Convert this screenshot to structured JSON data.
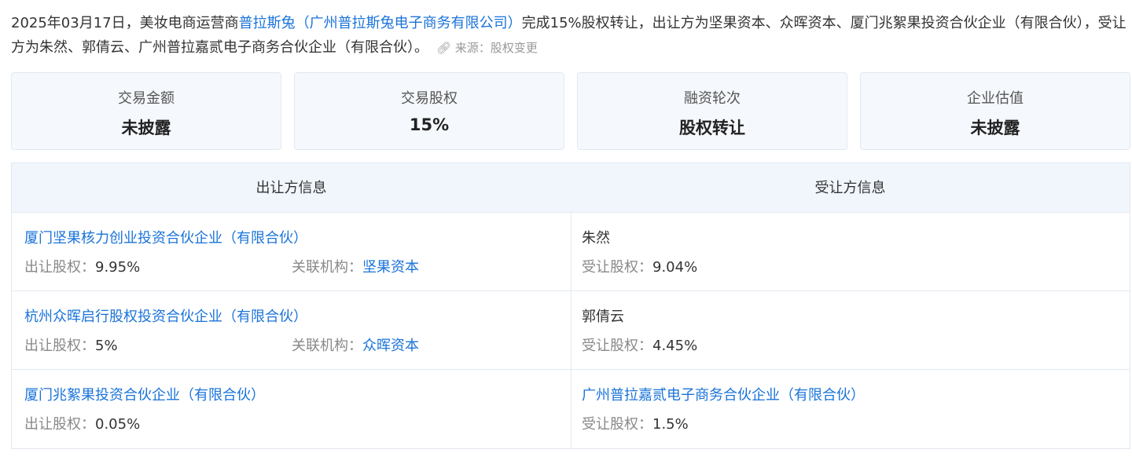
{
  "description": {
    "prefix": "2025年03月17日，美妆电商运营商",
    "company_short": "普拉斯兔",
    "company_full": "（广州普拉斯兔电子商务有限公司）",
    "suffix": "完成15%股权转让，出让方为坚果资本、众晖资本、厦门兆絮果投资合伙企业（有限合伙），受让方为朱然、郭倩云、广州普拉嘉贰电子商务合伙企业（有限合伙）。",
    "source": "来源：股权变更"
  },
  "cards": [
    {
      "label": "交易金额",
      "value": "未披露"
    },
    {
      "label": "交易股权",
      "value": "15%"
    },
    {
      "label": "融资轮次",
      "value": "股权转让"
    },
    {
      "label": "企业估值",
      "value": "未披露"
    }
  ],
  "table": {
    "headers": [
      "出让方信息",
      "受让方信息"
    ],
    "rows": [
      {
        "seller": "厦门坚果核力创业投资合伙企业（有限合伙）",
        "seller_label": "出让股权：",
        "seller_pct": "9.95%",
        "org_label": "关联机构：",
        "org": "坚果资本",
        "buyer": "朱然",
        "buyer_label": "受让股权：",
        "buyer_pct": "9.04%"
      },
      {
        "seller": "杭州众晖启行股权投资合伙企业（有限合伙）",
        "seller_label": "出让股权：",
        "seller_pct": "5%",
        "org_label": "关联机构：",
        "org": "众晖资本",
        "buyer": "郭倩云",
        "buyer_label": "受让股权：",
        "buyer_pct": "4.45%"
      },
      {
        "seller": "厦门兆絮果投资合伙企业（有限合伙）",
        "seller_label": "出让股权：",
        "seller_pct": "0.05%",
        "buyer": "广州普拉嘉贰电子商务合伙企业（有限合伙）",
        "buyer_label": "受让股权：",
        "buyer_pct": "1.5%"
      }
    ]
  },
  "colors": {
    "link": "#1a73d9",
    "card_bg": "#f5f8fc",
    "header_bg": "#f0f6fc"
  }
}
